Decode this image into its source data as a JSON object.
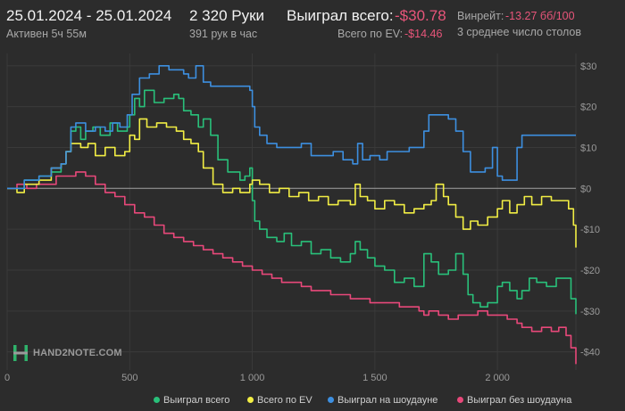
{
  "header": {
    "date_range": "25.01.2024 - 25.01.2024",
    "active": "Активен 5ч 55м",
    "hands": "2 320 Руки",
    "hands_per_hour": "391 рук в час",
    "won_total_label": "Выиграл всего:",
    "won_total_value": "-$30.78",
    "ev_total_label": "Всего по EV:",
    "ev_total_value": "-$14.46",
    "winrate_label": "Винрейт:",
    "winrate_value": "-13.27 бб/100",
    "avg_tables": "3 среднее число столов"
  },
  "colors": {
    "background": "#2c2c2c",
    "won_total": "#29c07a",
    "ev": "#f2ee44",
    "showdown": "#3d8fe0",
    "non_showdown": "#e8487a",
    "negative_text": "#e8557a"
  },
  "logo": {
    "text": "HAND2NOTE.COM",
    "icon": "h2n-logo-icon"
  },
  "chart_data": {
    "type": "line",
    "xlim": [
      0,
      2320
    ],
    "ylim": [
      -44,
      33
    ],
    "x_ticks": [
      0,
      500,
      1000,
      1500,
      2000
    ],
    "x_tick_labels": [
      "0",
      "500",
      "1 000",
      "1 500",
      "2 000"
    ],
    "y_ticks": [
      30,
      20,
      10,
      0,
      -10,
      -20,
      -30,
      -40
    ],
    "y_tick_labels": [
      "$30",
      "$20",
      "$10",
      "$0",
      "-$10",
      "-$20",
      "-$30",
      "-$40"
    ],
    "grid": true,
    "legend_position": "bottom",
    "series": [
      {
        "name": "Выиграл всего",
        "color": "#29c07a",
        "points": [
          [
            0,
            0
          ],
          [
            40,
            0
          ],
          [
            70,
            2
          ],
          [
            130,
            3
          ],
          [
            180,
            4
          ],
          [
            220,
            6
          ],
          [
            240,
            9
          ],
          [
            260,
            14
          ],
          [
            280,
            15
          ],
          [
            300,
            12
          ],
          [
            320,
            14
          ],
          [
            350,
            15
          ],
          [
            380,
            13
          ],
          [
            420,
            16
          ],
          [
            450,
            14
          ],
          [
            490,
            15
          ],
          [
            500,
            18
          ],
          [
            520,
            22
          ],
          [
            540,
            20
          ],
          [
            560,
            24
          ],
          [
            600,
            21
          ],
          [
            640,
            22
          ],
          [
            680,
            23
          ],
          [
            700,
            22
          ],
          [
            720,
            19
          ],
          [
            750,
            18
          ],
          [
            780,
            15
          ],
          [
            800,
            17
          ],
          [
            830,
            13
          ],
          [
            860,
            7
          ],
          [
            900,
            4
          ],
          [
            950,
            2
          ],
          [
            970,
            3
          ],
          [
            990,
            5
          ],
          [
            1000,
            -3
          ],
          [
            1010,
            -8
          ],
          [
            1030,
            -10
          ],
          [
            1060,
            -12
          ],
          [
            1100,
            -13
          ],
          [
            1130,
            -11
          ],
          [
            1160,
            -14
          ],
          [
            1200,
            -13
          ],
          [
            1240,
            -16
          ],
          [
            1280,
            -15
          ],
          [
            1320,
            -17
          ],
          [
            1360,
            -18
          ],
          [
            1400,
            -16
          ],
          [
            1420,
            -13
          ],
          [
            1440,
            -15
          ],
          [
            1470,
            -17
          ],
          [
            1500,
            -19
          ],
          [
            1540,
            -20
          ],
          [
            1580,
            -23
          ],
          [
            1620,
            -22
          ],
          [
            1660,
            -24
          ],
          [
            1700,
            -16
          ],
          [
            1730,
            -18
          ],
          [
            1760,
            -21
          ],
          [
            1800,
            -20
          ],
          [
            1830,
            -16
          ],
          [
            1860,
            -21
          ],
          [
            1880,
            -26
          ],
          [
            1900,
            -28
          ],
          [
            1930,
            -29
          ],
          [
            1960,
            -28
          ],
          [
            2000,
            -24
          ],
          [
            2020,
            -23
          ],
          [
            2050,
            -25
          ],
          [
            2080,
            -27
          ],
          [
            2100,
            -25
          ],
          [
            2130,
            -22
          ],
          [
            2160,
            -23
          ],
          [
            2200,
            -24
          ],
          [
            2240,
            -22
          ],
          [
            2270,
            -22
          ],
          [
            2300,
            -27
          ],
          [
            2320,
            -30.78
          ]
        ]
      },
      {
        "name": "Всего по EV",
        "color": "#f2ee44",
        "points": [
          [
            0,
            0
          ],
          [
            40,
            -1
          ],
          [
            70,
            1
          ],
          [
            130,
            2
          ],
          [
            180,
            5
          ],
          [
            220,
            6
          ],
          [
            240,
            9
          ],
          [
            260,
            11
          ],
          [
            300,
            10
          ],
          [
            330,
            11
          ],
          [
            360,
            8
          ],
          [
            400,
            10
          ],
          [
            440,
            8
          ],
          [
            480,
            9
          ],
          [
            500,
            13
          ],
          [
            520,
            12
          ],
          [
            540,
            17
          ],
          [
            570,
            15
          ],
          [
            610,
            16
          ],
          [
            650,
            15
          ],
          [
            690,
            14
          ],
          [
            720,
            12
          ],
          [
            750,
            11
          ],
          [
            780,
            9
          ],
          [
            800,
            5
          ],
          [
            840,
            1
          ],
          [
            880,
            -1
          ],
          [
            920,
            0
          ],
          [
            950,
            -1
          ],
          [
            990,
            1
          ],
          [
            1000,
            2
          ],
          [
            1030,
            1
          ],
          [
            1070,
            -1
          ],
          [
            1110,
            0
          ],
          [
            1150,
            -2
          ],
          [
            1190,
            -1
          ],
          [
            1230,
            -3
          ],
          [
            1270,
            -2
          ],
          [
            1310,
            -4
          ],
          [
            1350,
            -3
          ],
          [
            1400,
            -4
          ],
          [
            1420,
            1
          ],
          [
            1440,
            -2
          ],
          [
            1470,
            -3
          ],
          [
            1500,
            -5
          ],
          [
            1540,
            -3
          ],
          [
            1580,
            -4
          ],
          [
            1620,
            -6
          ],
          [
            1660,
            -5
          ],
          [
            1700,
            -4
          ],
          [
            1730,
            -3
          ],
          [
            1750,
            1
          ],
          [
            1780,
            -2
          ],
          [
            1800,
            -4
          ],
          [
            1830,
            -7
          ],
          [
            1860,
            -10
          ],
          [
            1890,
            -8
          ],
          [
            1920,
            -9
          ],
          [
            1960,
            -7
          ],
          [
            2000,
            -5
          ],
          [
            2020,
            -3
          ],
          [
            2050,
            -6
          ],
          [
            2080,
            -4
          ],
          [
            2110,
            -2
          ],
          [
            2140,
            -4
          ],
          [
            2180,
            -2
          ],
          [
            2220,
            -3
          ],
          [
            2260,
            -3
          ],
          [
            2290,
            -5
          ],
          [
            2310,
            -9
          ],
          [
            2320,
            -14.46
          ]
        ]
      },
      {
        "name": "Выиграл на шоудауне",
        "color": "#3d8fe0",
        "points": [
          [
            0,
            0
          ],
          [
            40,
            0
          ],
          [
            70,
            2
          ],
          [
            130,
            3
          ],
          [
            180,
            5
          ],
          [
            220,
            6
          ],
          [
            240,
            9
          ],
          [
            260,
            15
          ],
          [
            280,
            16
          ],
          [
            320,
            14
          ],
          [
            360,
            15
          ],
          [
            400,
            14
          ],
          [
            430,
            16
          ],
          [
            460,
            15
          ],
          [
            490,
            18
          ],
          [
            510,
            23
          ],
          [
            540,
            27
          ],
          [
            580,
            28
          ],
          [
            620,
            30
          ],
          [
            660,
            29
          ],
          [
            700,
            29
          ],
          [
            720,
            28
          ],
          [
            740,
            27
          ],
          [
            770,
            30
          ],
          [
            800,
            26
          ],
          [
            830,
            25
          ],
          [
            870,
            25
          ],
          [
            950,
            25
          ],
          [
            990,
            24
          ],
          [
            1000,
            20
          ],
          [
            1010,
            15
          ],
          [
            1030,
            13
          ],
          [
            1060,
            11
          ],
          [
            1100,
            10
          ],
          [
            1150,
            10
          ],
          [
            1200,
            11
          ],
          [
            1240,
            8
          ],
          [
            1290,
            8
          ],
          [
            1330,
            9
          ],
          [
            1370,
            7
          ],
          [
            1410,
            6
          ],
          [
            1430,
            11
          ],
          [
            1450,
            7
          ],
          [
            1480,
            8
          ],
          [
            1520,
            7
          ],
          [
            1550,
            9
          ],
          [
            1600,
            9
          ],
          [
            1640,
            10
          ],
          [
            1680,
            10
          ],
          [
            1700,
            14
          ],
          [
            1720,
            18
          ],
          [
            1760,
            18
          ],
          [
            1800,
            17
          ],
          [
            1830,
            14
          ],
          [
            1860,
            9
          ],
          [
            1890,
            4
          ],
          [
            1920,
            4
          ],
          [
            1950,
            5
          ],
          [
            1980,
            10
          ],
          [
            2000,
            3
          ],
          [
            2020,
            2
          ],
          [
            2050,
            2
          ],
          [
            2080,
            10
          ],
          [
            2100,
            13
          ],
          [
            2140,
            13
          ],
          [
            2200,
            13
          ],
          [
            2260,
            13
          ],
          [
            2320,
            13
          ]
        ]
      },
      {
        "name": "Выиграл без шоудауна",
        "color": "#e8487a",
        "points": [
          [
            0,
            0
          ],
          [
            40,
            1
          ],
          [
            80,
            0
          ],
          [
            120,
            1
          ],
          [
            160,
            1
          ],
          [
            200,
            3
          ],
          [
            240,
            3
          ],
          [
            280,
            4
          ],
          [
            320,
            3
          ],
          [
            360,
            1
          ],
          [
            400,
            -1
          ],
          [
            440,
            -2
          ],
          [
            480,
            -4
          ],
          [
            520,
            -6
          ],
          [
            560,
            -7
          ],
          [
            600,
            -9
          ],
          [
            640,
            -11
          ],
          [
            680,
            -12
          ],
          [
            720,
            -13
          ],
          [
            760,
            -14
          ],
          [
            800,
            -15
          ],
          [
            840,
            -16
          ],
          [
            880,
            -17
          ],
          [
            920,
            -18
          ],
          [
            960,
            -19
          ],
          [
            1000,
            -20
          ],
          [
            1040,
            -21
          ],
          [
            1080,
            -22
          ],
          [
            1120,
            -23
          ],
          [
            1160,
            -23
          ],
          [
            1200,
            -24
          ],
          [
            1240,
            -25
          ],
          [
            1280,
            -25
          ],
          [
            1320,
            -26
          ],
          [
            1360,
            -26
          ],
          [
            1400,
            -27
          ],
          [
            1440,
            -27
          ],
          [
            1480,
            -28
          ],
          [
            1520,
            -28
          ],
          [
            1560,
            -28
          ],
          [
            1600,
            -29
          ],
          [
            1640,
            -29
          ],
          [
            1680,
            -30
          ],
          [
            1700,
            -31
          ],
          [
            1720,
            -30
          ],
          [
            1760,
            -31
          ],
          [
            1800,
            -32
          ],
          [
            1840,
            -31
          ],
          [
            1880,
            -31
          ],
          [
            1920,
            -30
          ],
          [
            1960,
            -31
          ],
          [
            2000,
            -31
          ],
          [
            2040,
            -32
          ],
          [
            2080,
            -33
          ],
          [
            2100,
            -34
          ],
          [
            2140,
            -35
          ],
          [
            2180,
            -34
          ],
          [
            2220,
            -35
          ],
          [
            2250,
            -34
          ],
          [
            2280,
            -36
          ],
          [
            2300,
            -39
          ],
          [
            2320,
            -43
          ]
        ]
      }
    ]
  }
}
